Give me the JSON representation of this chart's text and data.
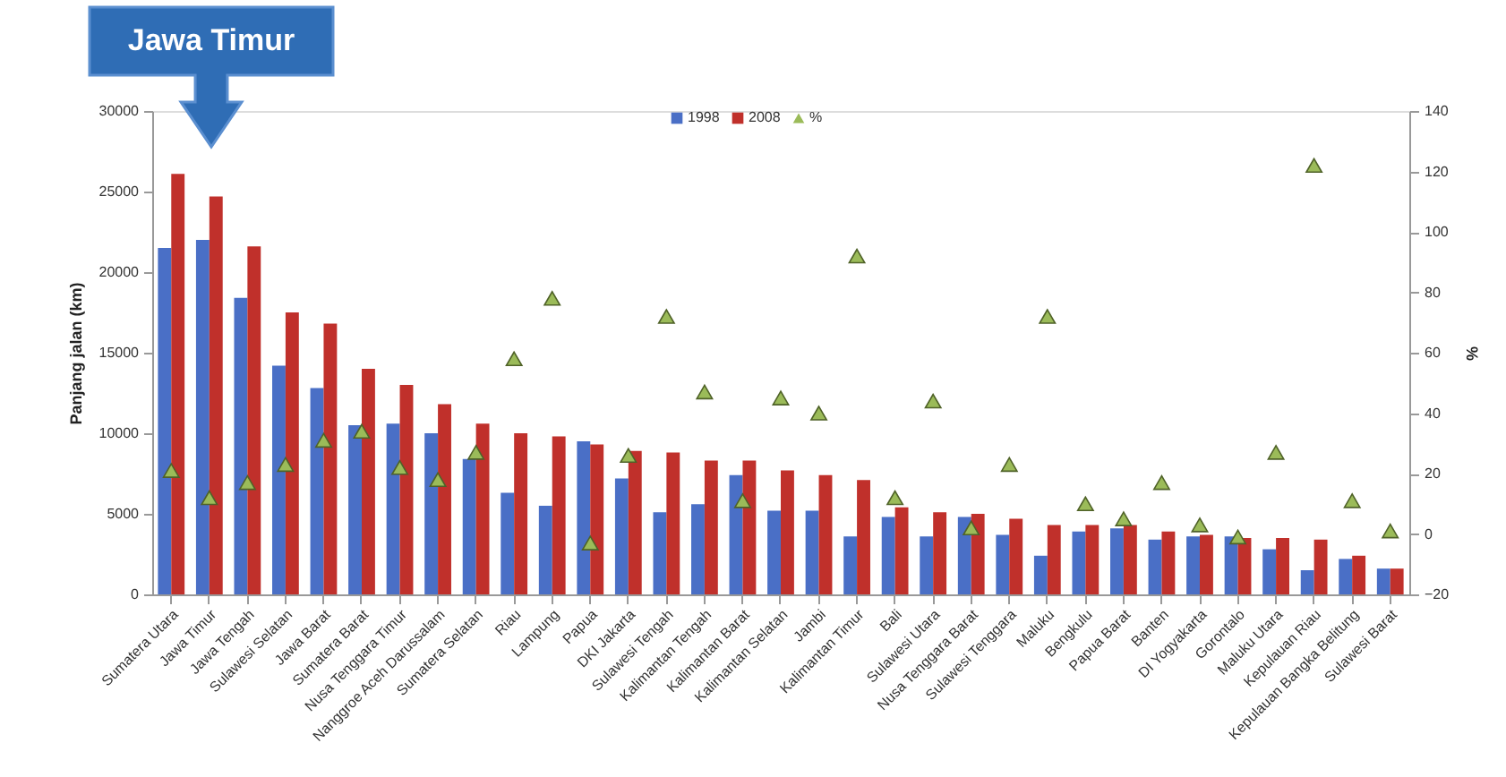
{
  "chart_data": {
    "type": "bar",
    "categories": [
      "Sumatera Utara",
      "Jawa Timur",
      "Jawa Tengah",
      "Sulawesi Selatan",
      "Jawa Barat",
      "Sumatera Barat",
      "Nusa Tenggara Timur",
      "Nanggroe Aceh Darussalam",
      "Sumatera Selatan",
      "Riau",
      "Lampung",
      "Papua",
      "DKI Jakarta",
      "Sulawesi Tengah",
      "Kalimantan Tengah",
      "Kalimantan Barat",
      "Kalimantan Selatan",
      "Jambi",
      "Kalimantan Timur",
      "Bali",
      "Sulawesi Utara",
      "Nusa Tenggara Barat",
      "Sulawesi Tenggara",
      "Maluku",
      "Bengkulu",
      "Papua Barat",
      "Banten",
      "DI Yogyakarta",
      "Gorontalo",
      "Maluku Utara",
      "Kepulauan Riau",
      "Kepulauan Bangka Belitung",
      "Sulawesi Barat"
    ],
    "series": [
      {
        "name": "1998",
        "color": "#4a6fc6",
        "values": [
          21500,
          22000,
          18400,
          14200,
          12800,
          10500,
          10600,
          10000,
          8400,
          6300,
          5500,
          9500,
          7200,
          5100,
          5600,
          7400,
          5200,
          5200,
          3600,
          4800,
          3600,
          4800,
          3700,
          2400,
          3900,
          4100,
          3400,
          3600,
          3600,
          2800,
          1500,
          2200,
          1600
        ]
      },
      {
        "name": "2008",
        "color": "#c0302b",
        "values": [
          26100,
          24700,
          21600,
          17500,
          16800,
          14000,
          13000,
          11800,
          10600,
          10000,
          9800,
          9300,
          8900,
          8800,
          8300,
          8300,
          7700,
          7400,
          7100,
          5400,
          5100,
          5000,
          4700,
          4300,
          4300,
          4300,
          3900,
          3700,
          3500,
          3500,
          3400,
          2400,
          1600
        ]
      },
      {
        "name": "%",
        "type": "scatter",
        "axis": "y2",
        "marker": "triangle",
        "color": "#9bbb59",
        "values": [
          21,
          12,
          17,
          23,
          31,
          34,
          22,
          18,
          27,
          58,
          78,
          -3,
          26,
          72,
          47,
          11,
          45,
          40,
          92,
          12,
          44,
          2,
          23,
          72,
          10,
          5,
          17,
          3,
          -1,
          27,
          122,
          11,
          1
        ]
      }
    ],
    "ylabel": "Panjang jalan (km)",
    "y2label": "%",
    "ylim": [
      0,
      30000
    ],
    "yticks": [
      0,
      5000,
      10000,
      15000,
      20000,
      25000,
      30000
    ],
    "y2lim": [
      -20,
      140
    ],
    "y2ticks": [
      -20,
      0,
      20,
      40,
      60,
      80,
      100,
      120,
      140
    ],
    "grid": false,
    "legend": "top",
    "annotations": [
      "Jawa Timur"
    ]
  }
}
